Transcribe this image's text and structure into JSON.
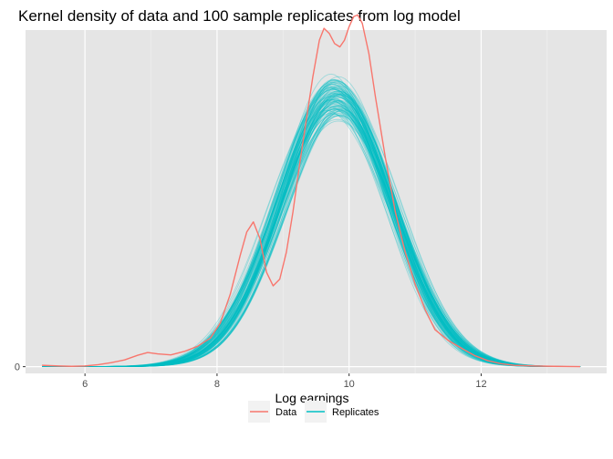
{
  "chart_data": {
    "type": "line",
    "title": "Kernel density of data and 100 sample replicates from log model",
    "xlabel": "Log earnings",
    "ylabel": "",
    "xlim": [
      5.1,
      13.9
    ],
    "ylim": [
      -0.02,
      1.0
    ],
    "x_ticks": [
      6,
      8,
      10,
      12
    ],
    "x_tick_labels": [
      "6",
      "8",
      "10",
      "12"
    ],
    "y_ticks": [
      0
    ],
    "y_tick_labels": [
      "0"
    ],
    "grid": true,
    "legend_position": "bottom",
    "replicate_count": 100,
    "series": [
      {
        "name": "Data",
        "color": "#F8766D",
        "x": [
          5.35,
          5.6,
          5.8,
          6.0,
          6.2,
          6.4,
          6.6,
          6.8,
          6.95,
          7.1,
          7.3,
          7.5,
          7.7,
          7.9,
          8.05,
          8.2,
          8.35,
          8.45,
          8.55,
          8.65,
          8.75,
          8.85,
          8.95,
          9.05,
          9.15,
          9.25,
          9.35,
          9.45,
          9.55,
          9.62,
          9.7,
          9.78,
          9.86,
          9.93,
          10.0,
          10.07,
          10.13,
          10.2,
          10.3,
          10.4,
          10.55,
          10.7,
          10.85,
          11.0,
          11.15,
          11.3,
          11.5,
          11.7,
          11.9,
          12.1,
          12.3,
          12.5,
          12.8,
          13.1,
          13.5
        ],
        "y": [
          0.004,
          0.002,
          0.001,
          0.002,
          0.006,
          0.012,
          0.02,
          0.034,
          0.042,
          0.038,
          0.035,
          0.045,
          0.06,
          0.085,
          0.13,
          0.215,
          0.33,
          0.4,
          0.43,
          0.38,
          0.28,
          0.24,
          0.26,
          0.34,
          0.46,
          0.6,
          0.73,
          0.86,
          0.97,
          1.005,
          0.99,
          0.96,
          0.95,
          0.97,
          1.01,
          1.04,
          1.045,
          1.02,
          0.93,
          0.8,
          0.62,
          0.46,
          0.34,
          0.245,
          0.17,
          0.11,
          0.078,
          0.055,
          0.033,
          0.018,
          0.009,
          0.004,
          0.002,
          0.001,
          0.0
        ]
      },
      {
        "name": "Replicates",
        "color": "#00BFC4",
        "mean": 9.8,
        "sd": 0.85,
        "peak_density": 0.8
      }
    ]
  }
}
